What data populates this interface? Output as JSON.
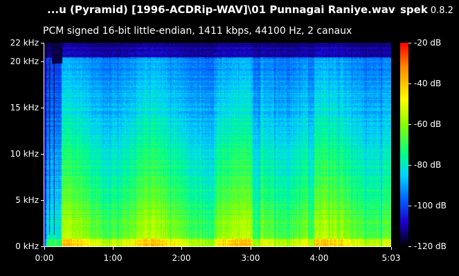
{
  "window": {
    "title": "...u (Pyramid) [1996-ACDRip-WAV]\\01 Punnagai Raniye.wav",
    "app_name": "spek",
    "app_version": "0.8.2"
  },
  "file_info": "PCM signed 16-bit little-endian, 1411 kbps, 44100 Hz, 2 canaux",
  "chart_data": {
    "type": "heatmap",
    "y_axis": {
      "unit": "kHz",
      "range": [
        0,
        22
      ],
      "ticks": [
        {
          "value": 22,
          "label": "22 kHz"
        },
        {
          "value": 20,
          "label": "20 kHz"
        },
        {
          "value": 15,
          "label": "15 kHz"
        },
        {
          "value": 10,
          "label": "10 kHz"
        },
        {
          "value": 5,
          "label": "5 kHz"
        },
        {
          "value": 0,
          "label": "0 kHz"
        }
      ]
    },
    "x_axis": {
      "unit": "time",
      "range_seconds": [
        0,
        303
      ],
      "ticks": [
        {
          "value": 0,
          "label": "0:00"
        },
        {
          "value": 60,
          "label": "1:00"
        },
        {
          "value": 120,
          "label": "2:00"
        },
        {
          "value": 180,
          "label": "3:00"
        },
        {
          "value": 240,
          "label": "4:00"
        },
        {
          "value": 303,
          "label": "5:03"
        }
      ]
    },
    "color_scale": {
      "unit": "dB",
      "range": [
        -120,
        -20
      ],
      "ticks": [
        {
          "value": -20,
          "label": "-20 dB"
        },
        {
          "value": -40,
          "label": "-40 dB"
        },
        {
          "value": -60,
          "label": "-60 dB"
        },
        {
          "value": -80,
          "label": "-80 dB"
        },
        {
          "value": -100,
          "label": "-100 dB"
        },
        {
          "value": -120,
          "label": "-120 dB"
        }
      ],
      "colors": [
        "#ff0000",
        "#ffff00",
        "#00ff88",
        "#00d4ff",
        "#1a00d0",
        "#000000"
      ]
    }
  }
}
